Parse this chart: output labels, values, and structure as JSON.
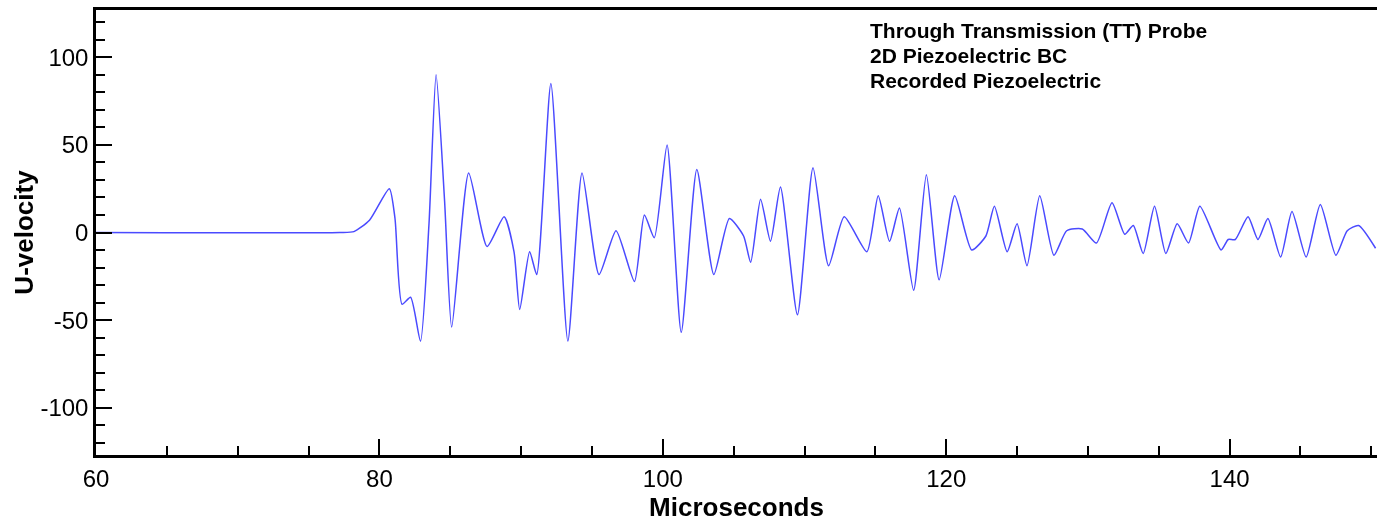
{
  "chart_data": {
    "type": "line",
    "xlabel": "Microseconds",
    "ylabel": "U-velocity",
    "annotations": [
      "Through Transmission (TT) Probe",
      "2D Piezoelectric BC",
      "Recorded Piezoelectric"
    ],
    "xlim": [
      60,
      150.4
    ],
    "ylim": [
      -127,
      127
    ],
    "xticks": [
      60,
      {
        "value": 65,
        "label": null
      },
      {
        "value": 70,
        "label": null
      },
      {
        "value": 75,
        "label": null
      },
      80,
      {
        "value": 85,
        "label": null
      },
      {
        "value": 90,
        "label": null
      },
      {
        "value": 95,
        "label": null
      },
      100,
      {
        "value": 105,
        "label": null
      },
      {
        "value": 110,
        "label": null
      },
      {
        "value": 115,
        "label": null
      },
      120,
      {
        "value": 125,
        "label": null
      },
      {
        "value": 130,
        "label": null
      },
      {
        "value": 135,
        "label": null
      },
      140,
      {
        "value": 145,
        "label": null
      },
      {
        "value": 150,
        "label": null
      }
    ],
    "yticks": [
      {
        "value": -120,
        "label": null
      },
      {
        "value": -110,
        "label": null
      },
      -100,
      {
        "value": -90,
        "label": null
      },
      {
        "value": -80,
        "label": null
      },
      {
        "value": -70,
        "label": null
      },
      {
        "value": -60,
        "label": null
      },
      -50,
      {
        "value": -40,
        "label": null
      },
      {
        "value": -30,
        "label": null
      },
      {
        "value": -20,
        "label": null
      },
      {
        "value": -10,
        "label": null
      },
      0,
      {
        "value": 10,
        "label": null
      },
      {
        "value": 20,
        "label": null
      },
      {
        "value": 30,
        "label": null
      },
      {
        "value": 40,
        "label": null
      },
      50,
      {
        "value": 60,
        "label": null
      },
      {
        "value": 70,
        "label": null
      },
      {
        "value": 80,
        "label": null
      },
      {
        "value": 90,
        "label": null
      },
      100,
      {
        "value": 110,
        "label": null
      },
      {
        "value": 120,
        "label": null
      }
    ],
    "grid": false,
    "marker": "none",
    "line_style": "solid",
    "x": [
      60,
      77.2,
      78.2,
      79.3,
      80.7,
      81.1,
      81.6,
      82.2,
      82.9,
      83.5,
      84.0,
      84.6,
      85.1,
      86.3,
      87.6,
      88.8,
      89.5,
      89.9,
      90.6,
      91.1,
      92.1,
      93.3,
      94.3,
      95.5,
      96.7,
      98.0,
      98.7,
      99.4,
      100.3,
      101.3,
      102.4,
      103.6,
      104.7,
      105.7,
      106.2,
      106.9,
      107.6,
      108.3,
      109.5,
      110.6,
      111.7,
      112.8,
      114.4,
      115.2,
      116.0,
      116.7,
      117.7,
      118.6,
      119.5,
      120.6,
      121.8,
      122.8,
      123.4,
      124.3,
      125.0,
      125.7,
      126.6,
      127.6,
      128.5,
      129.6,
      130.6,
      131.7,
      132.6,
      133.2,
      133.9,
      134.7,
      135.5,
      136.3,
      137.1,
      137.9,
      139.4,
      139.9,
      140.4,
      141.3,
      142.0,
      142.7,
      143.6,
      144.4,
      145.4,
      146.4,
      147.5,
      148.3,
      149.1,
      150.3
    ],
    "series": [
      {
        "color": "#4a4aff",
        "values": [
          0,
          0,
          0.5,
          7,
          25,
          8,
          -41,
          -37,
          -62,
          5,
          90,
          18,
          -54,
          34,
          -8,
          9,
          -11,
          -44,
          -11,
          -24,
          85,
          -62,
          34,
          -24,
          1,
          -28,
          10,
          -3,
          50,
          -57,
          36,
          -24,
          8,
          -2,
          -17,
          19,
          -5,
          26,
          -47,
          37,
          -19,
          9,
          -11,
          21,
          -5,
          14,
          -33,
          33,
          -27,
          21,
          -10,
          -2,
          15,
          -11,
          5,
          -19,
          21,
          -13,
          1,
          2,
          -6,
          17,
          -1,
          4,
          -12,
          15,
          -12,
          5,
          -6,
          15,
          -10,
          -4,
          -4,
          9,
          -4,
          8,
          -14,
          12,
          -14,
          16,
          -13,
          1,
          4,
          -9
        ]
      }
    ]
  }
}
